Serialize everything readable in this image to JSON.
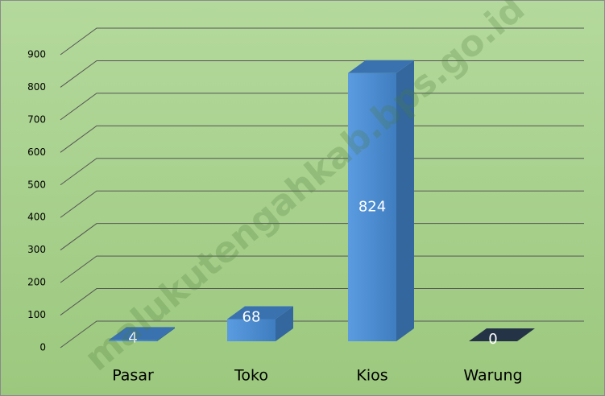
{
  "chart_data": {
    "type": "bar3d",
    "categories": [
      "Pasar",
      "Toko",
      "Kios",
      "Warung"
    ],
    "values": [
      4,
      68,
      824,
      0
    ],
    "colors": [
      "#4a86c8",
      "#4a86c8",
      "#4a86c8",
      "#1f2d3d"
    ],
    "ylim": [
      0,
      900
    ],
    "yticks": [
      0,
      100,
      200,
      300,
      400,
      500,
      600,
      700,
      800,
      900
    ],
    "grid": true,
    "watermark": "malukutengahkab.bps.go.id"
  }
}
